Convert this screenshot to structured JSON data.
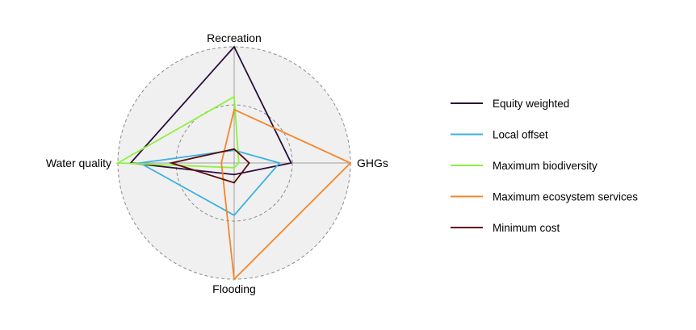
{
  "chart_data": {
    "type": "radar",
    "axes": [
      "Recreation",
      "GHGs",
      "Flooding",
      "Water quality"
    ],
    "rmax": 1.0,
    "grid_rings": [
      0.5,
      1.0
    ],
    "legend_position": "right",
    "series": [
      {
        "name": "Equity weighted",
        "color": "#2a0f3c",
        "values": [
          1.0,
          0.49,
          0.1,
          0.89
        ]
      },
      {
        "name": "Local offset",
        "color": "#3bb2e2",
        "values": [
          0.11,
          0.39,
          0.45,
          0.81
        ]
      },
      {
        "name": "Maximum biodiversity",
        "color": "#8ef23a",
        "values": [
          0.57,
          0.04,
          0.04,
          1.0
        ]
      },
      {
        "name": "Maximum ecosystem services",
        "color": "#f5862a",
        "values": [
          0.46,
          1.0,
          1.0,
          0.11
        ]
      },
      {
        "name": "Minimum cost",
        "color": "#5c0a0a",
        "values": [
          0.12,
          0.13,
          0.17,
          0.54
        ]
      }
    ]
  }
}
